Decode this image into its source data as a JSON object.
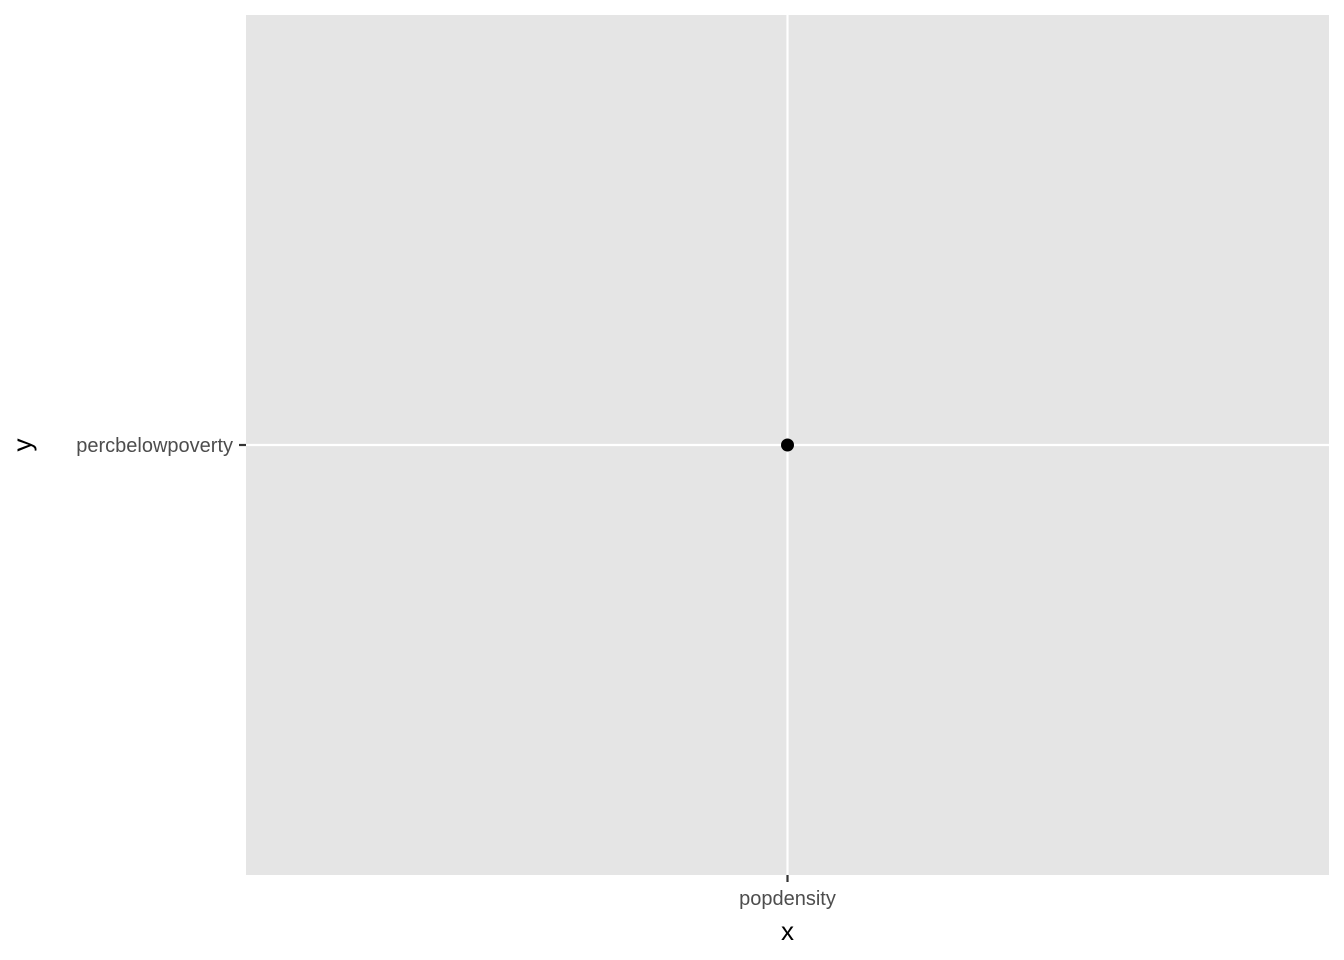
{
  "chart_data": {
    "type": "scatter",
    "title": "",
    "xlabel": "x",
    "ylabel": "y",
    "x_type": "categorical",
    "y_type": "categorical",
    "x_categories": [
      "popdensity"
    ],
    "y_categories": [
      "percbelowpoverty"
    ],
    "points": [
      {
        "x": "popdensity",
        "y": "percbelowpoverty"
      }
    ],
    "grid": true,
    "legend": "none",
    "colors": {
      "panel_background": "#e5e5e5",
      "gridline": "#ffffff",
      "point": "#000000",
      "tick_mark": "#333333",
      "tick_label": "#4d4d4d",
      "axis_title": "#000000"
    }
  }
}
